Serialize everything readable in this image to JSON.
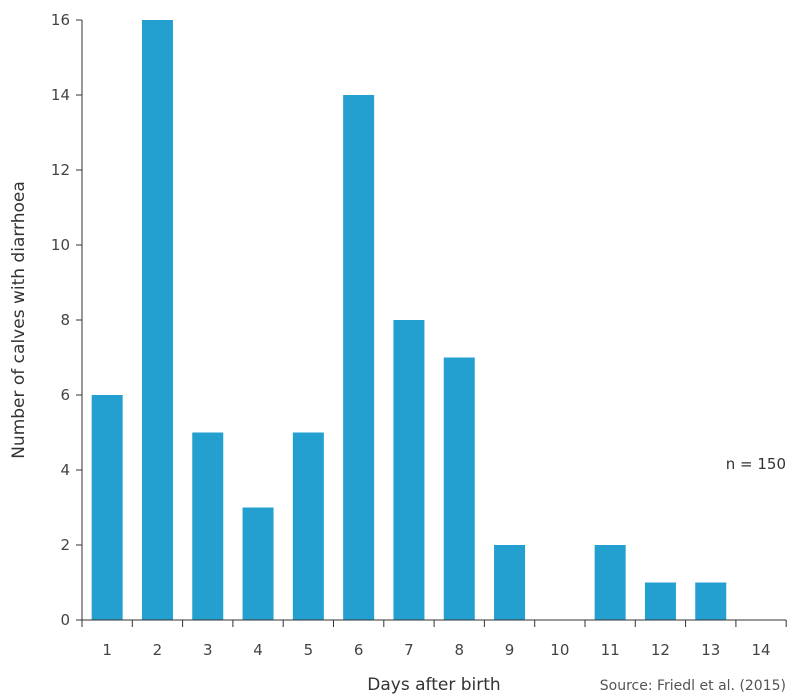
{
  "chart_data": {
    "type": "bar",
    "categories": [
      "1",
      "2",
      "3",
      "4",
      "5",
      "6",
      "7",
      "8",
      "9",
      "10",
      "11",
      "12",
      "13",
      "14"
    ],
    "values": [
      6,
      16,
      5,
      3,
      5,
      14,
      8,
      7,
      2,
      0,
      2,
      1,
      1,
      0
    ],
    "xlabel": "Days after birth",
    "ylabel": "Number of calves with diarrhoea",
    "ylim": [
      0,
      16
    ],
    "yticks": [
      0,
      2,
      4,
      6,
      8,
      10,
      12,
      14,
      16
    ],
    "grid": false,
    "bar_color": "#23a0cf",
    "annotation": "n = 150",
    "source": "Source: Friedl et al. (2015)"
  }
}
